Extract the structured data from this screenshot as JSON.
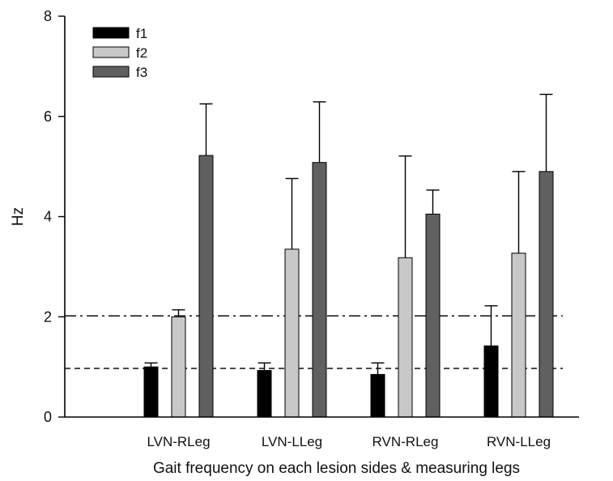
{
  "chart_data": {
    "type": "bar",
    "xlabel": "Gait frequency on each lesion sides & measuring legs",
    "ylabel": "Hz",
    "ylim": [
      0,
      8
    ],
    "yticks": [
      0,
      2,
      4,
      6,
      8
    ],
    "categories": [
      "LVN-RLeg",
      "LVN-LLeg",
      "RVN-RLeg",
      "RVN-LLeg"
    ],
    "series": [
      {
        "name": "f1",
        "color": "#000000",
        "values": [
          1.0,
          0.93,
          0.85,
          1.42
        ],
        "errors": [
          0.08,
          0.15,
          0.23,
          0.8
        ]
      },
      {
        "name": "f2",
        "color": "#c8c8c8",
        "values": [
          2.0,
          3.35,
          3.18,
          3.27
        ],
        "errors": [
          0.14,
          1.41,
          2.03,
          1.63
        ]
      },
      {
        "name": "f3",
        "color": "#606060",
        "values": [
          5.22,
          5.08,
          4.05,
          4.9
        ],
        "errors": [
          1.03,
          1.21,
          0.48,
          1.54
        ]
      }
    ],
    "reference_lines": [
      {
        "y": 2.02,
        "style": "dash-dot"
      },
      {
        "y": 0.97,
        "style": "dashed"
      }
    ],
    "legend_position": "top-left",
    "grid": false,
    "error_bars": true
  }
}
